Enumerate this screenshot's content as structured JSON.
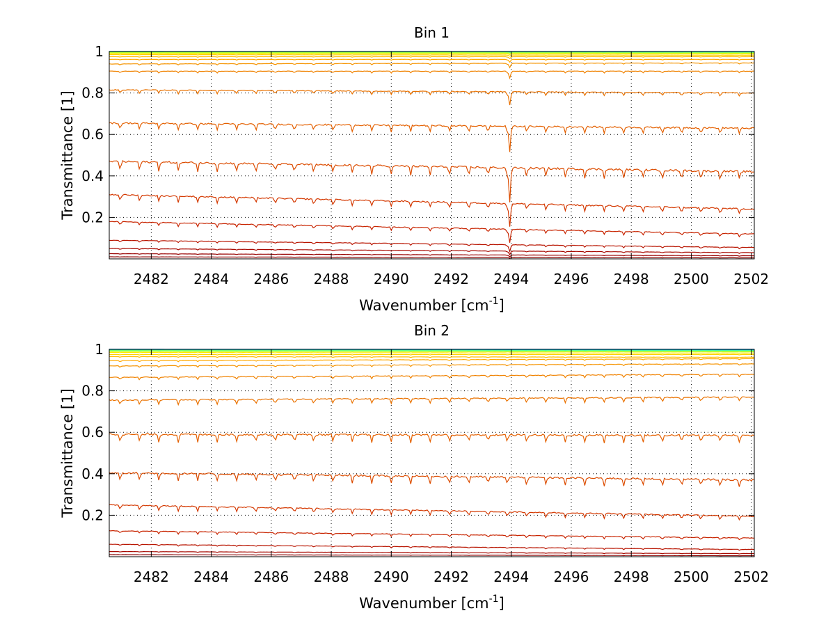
{
  "chart_data": [
    {
      "type": "line",
      "title": "Bin 1",
      "xlabel": "Wavenumber [cm",
      "xlabel_sup": "-1",
      "xlabel_end": "]",
      "ylabel": "Transmittance [1]",
      "xlim": [
        2480.6,
        2502.1
      ],
      "ylim": [
        0,
        1
      ],
      "xticks": [
        "2482",
        "2484",
        "2486",
        "2488",
        "2490",
        "2492",
        "2494",
        "2496",
        "2498",
        "2500",
        "2502"
      ],
      "yticks": [
        "0.2",
        "0.4",
        "0.6",
        "0.8",
        "1"
      ],
      "grid": true,
      "series": [
        {
          "values": [
            1.0,
            1.0
          ],
          "color": "#00a0ff"
        },
        {
          "values": [
            1.0,
            0.998
          ],
          "color": "#00d8e8"
        },
        {
          "values": [
            0.998,
            0.996
          ],
          "color": "#30f0b0"
        },
        {
          "values": [
            0.996,
            0.994
          ],
          "color": "#80ff60"
        },
        {
          "values": [
            0.994,
            0.992
          ],
          "color": "#c8ff20"
        },
        {
          "values": [
            0.99,
            0.988
          ],
          "color": "#ffe800"
        },
        {
          "values": [
            0.985,
            0.982
          ],
          "color": "#ffd000"
        },
        {
          "values": [
            0.975,
            0.975
          ],
          "color": "#ffbc00"
        },
        {
          "values": [
            0.962,
            0.962
          ],
          "color": "#ffa800"
        },
        {
          "values": [
            0.94,
            0.945
          ],
          "color": "#f59400"
        },
        {
          "values": [
            0.905,
            0.905
          ],
          "color": "#f08200"
        },
        {
          "values": [
            0.815,
            0.8
          ],
          "color": "#ea7200"
        },
        {
          "values": [
            0.655,
            0.63
          ],
          "color": "#e46000"
        },
        {
          "values": [
            0.47,
            0.42
          ],
          "color": "#dc4c00"
        },
        {
          "values": [
            0.31,
            0.24
          ],
          "color": "#d43800"
        },
        {
          "values": [
            0.18,
            0.12
          ],
          "color": "#c82400"
        },
        {
          "values": [
            0.09,
            0.055
          ],
          "color": "#b81400"
        },
        {
          "values": [
            0.05,
            0.03
          ],
          "color": "#a80800"
        },
        {
          "values": [
            0.025,
            0.015
          ],
          "color": "#980000"
        },
        {
          "values": [
            0.01,
            0.005
          ],
          "color": "#880000"
        }
      ]
    },
    {
      "type": "line",
      "title": "Bin 2",
      "xlabel": "Wavenumber [cm",
      "xlabel_sup": "-1",
      "xlabel_end": "]",
      "ylabel": "Transmittance [1]",
      "xlim": [
        2480.6,
        2502.1
      ],
      "ylim": [
        0,
        1
      ],
      "xticks": [
        "2482",
        "2484",
        "2486",
        "2488",
        "2490",
        "2492",
        "2494",
        "2496",
        "2498",
        "2500",
        "2502"
      ],
      "yticks": [
        "0.2",
        "0.4",
        "0.6",
        "0.8",
        "1"
      ],
      "grid": true,
      "series": [
        {
          "values": [
            1.0,
            1.0
          ],
          "color": "#0050ff"
        },
        {
          "values": [
            1.0,
            0.998
          ],
          "color": "#00a0ff"
        },
        {
          "values": [
            0.998,
            0.996
          ],
          "color": "#00d8e8"
        },
        {
          "values": [
            0.996,
            0.994
          ],
          "color": "#30f0b0"
        },
        {
          "values": [
            0.994,
            0.992
          ],
          "color": "#80ff60"
        },
        {
          "values": [
            0.99,
            0.988
          ],
          "color": "#c8ff20"
        },
        {
          "values": [
            0.985,
            0.982
          ],
          "color": "#ffe800"
        },
        {
          "values": [
            0.975,
            0.975
          ],
          "color": "#ffd000"
        },
        {
          "values": [
            0.965,
            0.962
          ],
          "color": "#ffbc00"
        },
        {
          "values": [
            0.945,
            0.955
          ],
          "color": "#ffa800"
        },
        {
          "values": [
            0.92,
            0.93
          ],
          "color": "#f59400"
        },
        {
          "values": [
            0.865,
            0.88
          ],
          "color": "#f08200"
        },
        {
          "values": [
            0.755,
            0.77
          ],
          "color": "#ea7200"
        },
        {
          "values": [
            0.59,
            0.585
          ],
          "color": "#e46000"
        },
        {
          "values": [
            0.405,
            0.37
          ],
          "color": "#dc4c00"
        },
        {
          "values": [
            0.25,
            0.195
          ],
          "color": "#d43800"
        },
        {
          "values": [
            0.125,
            0.09
          ],
          "color": "#c82400"
        },
        {
          "values": [
            0.06,
            0.035
          ],
          "color": "#b81400"
        },
        {
          "values": [
            0.025,
            0.015
          ],
          "color": "#a80800"
        },
        {
          "values": [
            0.01,
            0.005
          ],
          "color": "#880000"
        }
      ]
    }
  ]
}
